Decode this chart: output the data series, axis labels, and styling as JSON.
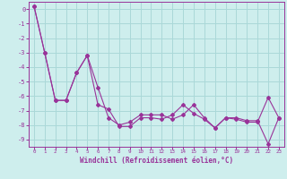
{
  "x": [
    0,
    1,
    2,
    3,
    4,
    5,
    6,
    7,
    8,
    9,
    10,
    11,
    12,
    13,
    14,
    15,
    16,
    17,
    18,
    19,
    20,
    21,
    22,
    23
  ],
  "y_line1": [
    0.2,
    -3.0,
    -6.3,
    -6.3,
    -4.4,
    -3.2,
    -5.4,
    -7.5,
    -8.0,
    -7.8,
    -7.3,
    -7.3,
    -7.3,
    -7.6,
    -7.3,
    -6.6,
    -7.5,
    -8.2,
    -7.5,
    -7.6,
    -7.8,
    -7.8,
    -6.1,
    -7.5
  ],
  "y_line2": [
    0.2,
    -3.0,
    -6.3,
    -6.3,
    -4.4,
    -3.2,
    -6.6,
    -6.9,
    -8.1,
    -8.1,
    -7.5,
    -7.5,
    -7.6,
    -7.3,
    -6.6,
    -7.2,
    -7.6,
    -8.2,
    -7.5,
    -7.5,
    -7.7,
    -7.7,
    -9.3,
    -7.5
  ],
  "xlabel": "Windchill (Refroidissement éolien,°C)",
  "background_color": "#ceeeed",
  "grid_color": "#aad8d8",
  "line_color": "#993399",
  "ylim": [
    -9.5,
    0.5
  ],
  "xlim": [
    -0.5,
    23.5
  ],
  "xticks": [
    0,
    1,
    2,
    3,
    4,
    5,
    6,
    7,
    8,
    9,
    10,
    11,
    12,
    13,
    14,
    15,
    16,
    17,
    18,
    19,
    20,
    21,
    22,
    23
  ],
  "yticks": [
    0,
    -1,
    -2,
    -3,
    -4,
    -5,
    -6,
    -7,
    -8,
    -9
  ]
}
